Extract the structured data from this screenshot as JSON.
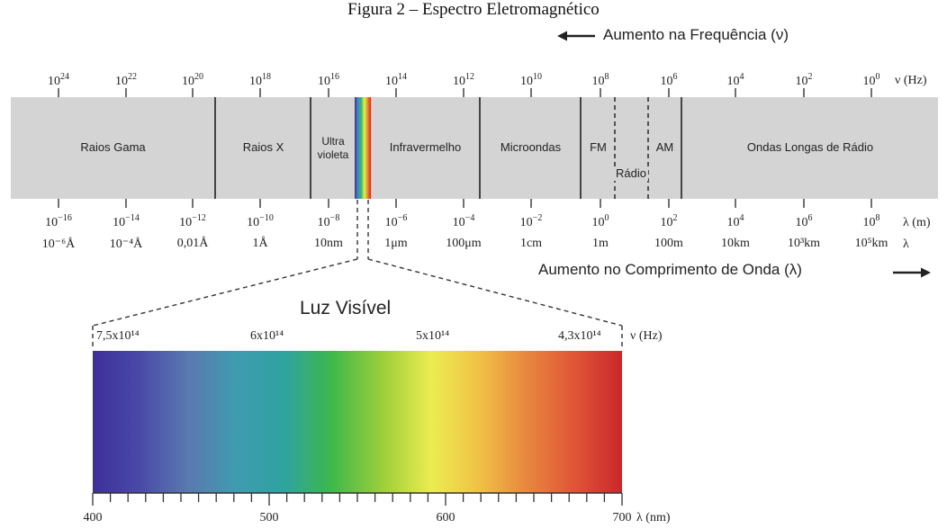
{
  "figure_title": "Figura 2 – Espectro Eletromagnético",
  "freq_caption": "Aumento na Frequência (ν)",
  "wave_caption": "Aumento no Comprimento de Onda (λ)",
  "freq_unit": "ν (Hz)",
  "wave_unit_m": "λ (m)",
  "wave_unit_alt": "λ",
  "frequency_ticks": [
    {
      "base": "10",
      "exp": "24"
    },
    {
      "base": "10",
      "exp": "22"
    },
    {
      "base": "10",
      "exp": "20"
    },
    {
      "base": "10",
      "exp": "18"
    },
    {
      "base": "10",
      "exp": "16"
    },
    {
      "base": "10",
      "exp": "14"
    },
    {
      "base": "10",
      "exp": "12"
    },
    {
      "base": "10",
      "exp": "10"
    },
    {
      "base": "10",
      "exp": "8"
    },
    {
      "base": "10",
      "exp": "6"
    },
    {
      "base": "10",
      "exp": "4"
    },
    {
      "base": "10",
      "exp": "2"
    },
    {
      "base": "10",
      "exp": "0"
    }
  ],
  "wavelength_ticks": [
    {
      "base": "10",
      "exp": "−16"
    },
    {
      "base": "10",
      "exp": "−14"
    },
    {
      "base": "10",
      "exp": "−12"
    },
    {
      "base": "10",
      "exp": "−10"
    },
    {
      "base": "10",
      "exp": "−8"
    },
    {
      "base": "10",
      "exp": "−6"
    },
    {
      "base": "10",
      "exp": "−4"
    },
    {
      "base": "10",
      "exp": "−2"
    },
    {
      "base": "10",
      "exp": "0"
    },
    {
      "base": "10",
      "exp": "2"
    },
    {
      "base": "10",
      "exp": "4"
    },
    {
      "base": "10",
      "exp": "6"
    },
    {
      "base": "10",
      "exp": "8"
    }
  ],
  "wavelength_alt_labels": [
    "10⁻⁶Å",
    "10⁻⁴Å",
    "0,01Å",
    "1Å",
    "10nm",
    "1μm",
    "100μm",
    "1cm",
    "1m",
    "100m",
    "10km",
    "10³km",
    "10⁵km"
  ],
  "bands": {
    "gamma": "Raios Gama",
    "xray": "Raios X",
    "uv_line1": "Ultra",
    "uv_line2": "violeta",
    "ir": "Infravermelho",
    "micro": "Microondas",
    "fm": "FM",
    "radio": "Rádio",
    "am": "AM",
    "long": "Ondas Longas de Rádio"
  },
  "visible": {
    "title": "Luz Visível",
    "freq_labels": [
      "7,5x10¹⁴",
      "6x10¹⁴",
      "5x10¹⁴",
      "4,3x10¹⁴"
    ],
    "freq_unit": "ν (Hz)",
    "nm_labels": [
      "400",
      "500",
      "600",
      "700"
    ],
    "nm_unit": "λ (nm)"
  },
  "colors": {
    "band_fill": "#d4d4d4",
    "divider": "#444444",
    "spectrum_stops": [
      "#3d2f9a",
      "#4a4aa8",
      "#5a79b0",
      "#3f9bb0",
      "#2fa2a0",
      "#3db84a",
      "#9fcf3a",
      "#ecec52",
      "#f0c146",
      "#e8873e",
      "#e05538",
      "#c9282a"
    ]
  }
}
